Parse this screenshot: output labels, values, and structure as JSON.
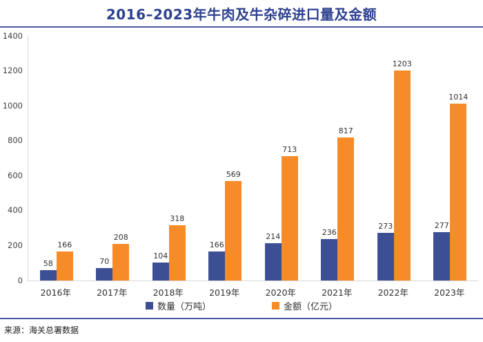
{
  "title": "2016–2023年牛肉及牛杂碎进口量及金额",
  "source_note": "来源：海关总署数据",
  "colors": {
    "title_text": "#2E4191",
    "divider": "#4A59A5",
    "quantity_bar": "#3D4F94",
    "amount_bar": "#F68B28",
    "axis_line": "#D9D9D9",
    "label_text": "#303030"
  },
  "chart_data": {
    "type": "bar",
    "title": "2016–2023年牛肉及牛杂碎进口量及金额",
    "categories": [
      "2016年",
      "2017年",
      "2018年",
      "2019年",
      "2020年",
      "2021年",
      "2022年",
      "2023年"
    ],
    "series": [
      {
        "key": "quantity",
        "name": "数量（万吨）",
        "color": "#3D4F94",
        "values": [
          58,
          70,
          104,
          166,
          214,
          236,
          273,
          277
        ]
      },
      {
        "key": "amount",
        "name": "金额（亿元）",
        "color": "#F68B28",
        "values": [
          166,
          208,
          318,
          569,
          713,
          817,
          1203,
          1014
        ]
      }
    ],
    "xlabel": "",
    "ylabel": "",
    "ylim": [
      0,
      1400
    ],
    "y_ticks": [
      0,
      200,
      400,
      600,
      800,
      1000,
      1200,
      1400
    ],
    "grid": false,
    "data_labels": true,
    "legend_position": "bottom",
    "source": "来源：海关总署数据"
  }
}
